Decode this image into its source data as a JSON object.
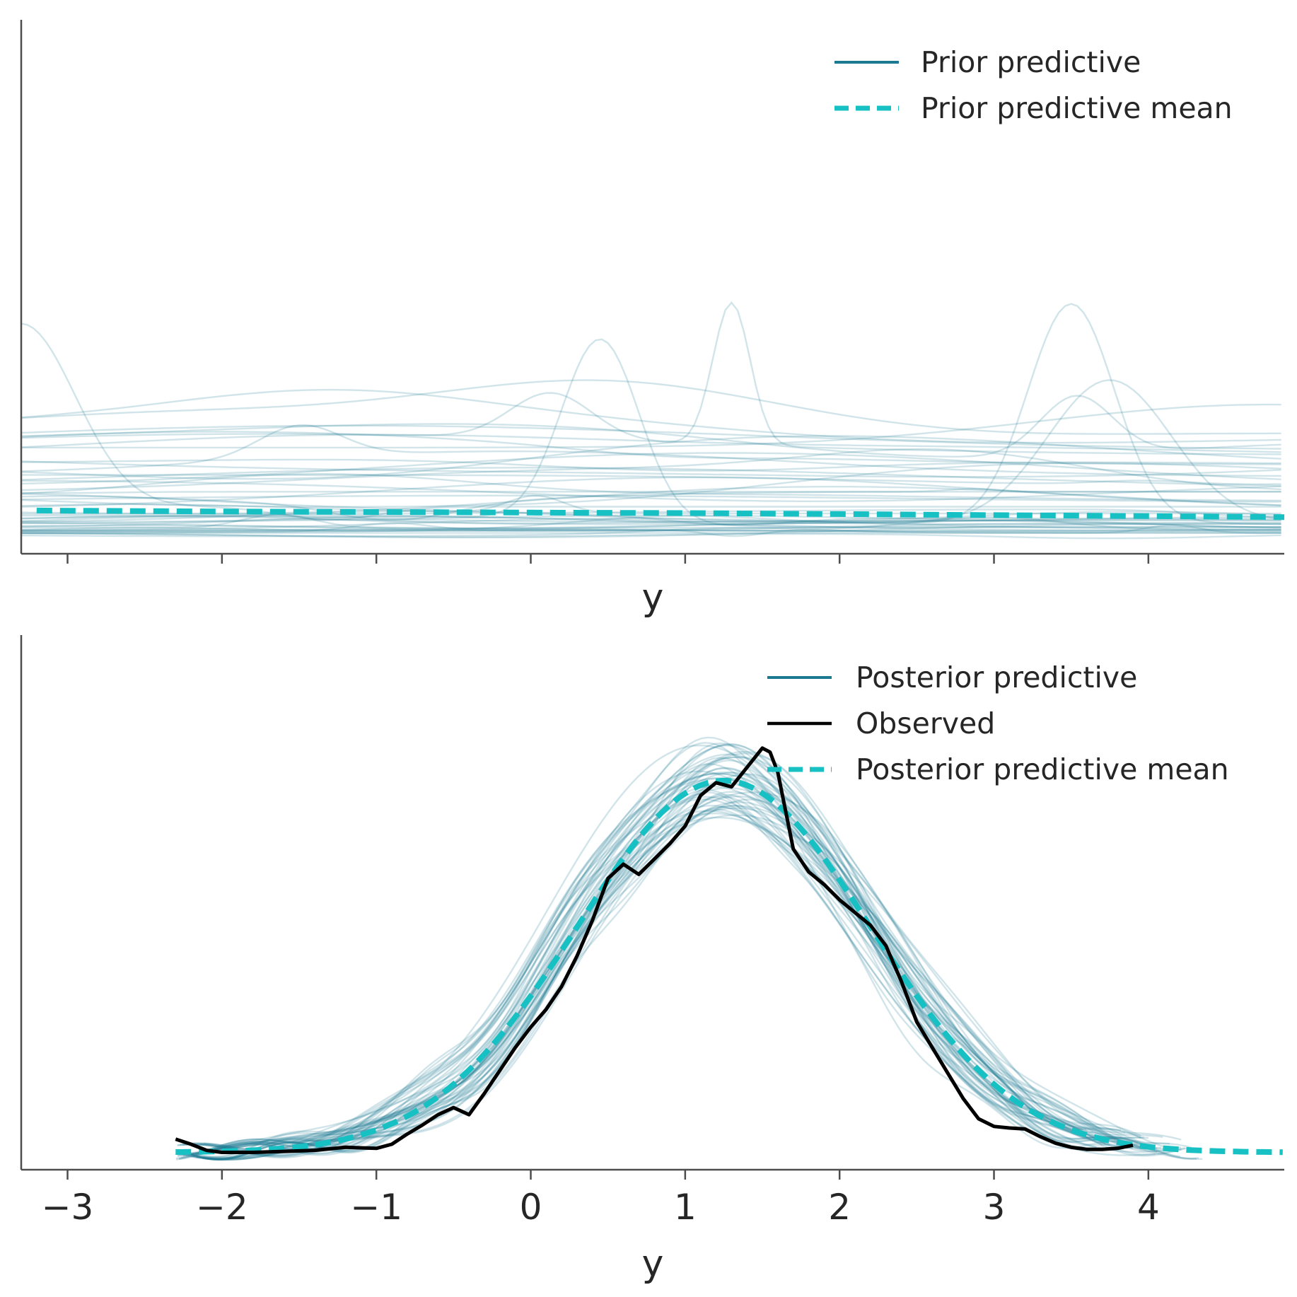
{
  "colors": {
    "sample": "#1b7a91",
    "mean": "#17c1c3",
    "observed": "#000000",
    "axis": "#4d4d4d",
    "text": "#262626"
  },
  "chart_data": [
    {
      "type": "line",
      "title": "",
      "xlabel": "y",
      "ylabel": "",
      "xlim": [
        -3.3,
        4.88
      ],
      "ylim": [
        0,
        1.05
      ],
      "x_ticks": [
        -3,
        -2,
        -1,
        0,
        1,
        2,
        3,
        4
      ],
      "x_tick_labels_visible": false,
      "legend": {
        "position": "top-right",
        "entries": [
          {
            "label": "Prior predictive",
            "style": "solid",
            "color": "#1b7a91"
          },
          {
            "label": "Prior predictive mean",
            "style": "dashed",
            "color": "#17c1c3"
          }
        ]
      },
      "series": [
        {
          "name": "Prior predictive",
          "kind": "samples",
          "count": 50,
          "opacity": 0.2
        },
        {
          "name": "Prior predictive mean",
          "kind": "mean",
          "x": [
            -3.2,
            -2,
            -1,
            0,
            1,
            2,
            3,
            4,
            4.88
          ],
          "values": [
            0.085,
            0.083,
            0.082,
            0.081,
            0.08,
            0.078,
            0.076,
            0.074,
            0.072
          ]
        }
      ]
    },
    {
      "type": "line",
      "title": "",
      "xlabel": "y",
      "ylabel": "",
      "xlim": [
        -3.3,
        4.88
      ],
      "ylim": [
        0,
        1.05
      ],
      "x_ticks": [
        -3,
        -2,
        -1,
        0,
        1,
        2,
        3,
        4
      ],
      "x_tick_labels": [
        "−3",
        "−2",
        "−1",
        "0",
        "1",
        "2",
        "3",
        "4"
      ],
      "legend": {
        "position": "top-right",
        "entries": [
          {
            "label": "Posterior predictive",
            "style": "solid",
            "color": "#1b7a91"
          },
          {
            "label": "Observed",
            "style": "solid",
            "color": "#000000"
          },
          {
            "label": "Posterior predictive mean",
            "style": "dashed",
            "color": "#17c1c3"
          }
        ]
      },
      "series": [
        {
          "name": "Posterior predictive",
          "kind": "samples",
          "count": 50,
          "opacity": 0.2
        },
        {
          "name": "Observed",
          "kind": "observed",
          "x": [
            -2.3,
            -2.2,
            -2.1,
            -2.0,
            -1.8,
            -1.6,
            -1.4,
            -1.2,
            -1.0,
            -0.9,
            -0.8,
            -0.7,
            -0.6,
            -0.5,
            -0.4,
            -0.3,
            -0.2,
            -0.1,
            0.0,
            0.1,
            0.2,
            0.3,
            0.4,
            0.5,
            0.6,
            0.7,
            0.8,
            0.9,
            1.0,
            1.1,
            1.2,
            1.3,
            1.4,
            1.5,
            1.55,
            1.6,
            1.7,
            1.8,
            1.9,
            2.0,
            2.1,
            2.2,
            2.3,
            2.4,
            2.5,
            2.6,
            2.7,
            2.8,
            2.9,
            3.0,
            3.1,
            3.2,
            3.3,
            3.4,
            3.5,
            3.6,
            3.7,
            3.8,
            3.9
          ],
          "values": [
            0.06,
            0.05,
            0.038,
            0.034,
            0.034,
            0.036,
            0.038,
            0.044,
            0.042,
            0.05,
            0.07,
            0.088,
            0.108,
            0.122,
            0.108,
            0.15,
            0.195,
            0.24,
            0.28,
            0.315,
            0.36,
            0.42,
            0.49,
            0.572,
            0.6,
            0.58,
            0.61,
            0.64,
            0.675,
            0.735,
            0.76,
            0.752,
            0.79,
            0.828,
            0.82,
            0.78,
            0.63,
            0.585,
            0.56,
            0.53,
            0.505,
            0.48,
            0.44,
            0.37,
            0.29,
            0.24,
            0.19,
            0.14,
            0.1,
            0.085,
            0.082,
            0.08,
            0.065,
            0.052,
            0.044,
            0.04,
            0.04,
            0.042,
            0.048
          ]
        },
        {
          "name": "Posterior predictive mean",
          "kind": "mean",
          "normal_fit": {
            "mean": 1.25,
            "sd": 0.95,
            "peak": 0.73,
            "baseline": 0.034
          },
          "x_range": [
            -2.3,
            4.88
          ]
        }
      ]
    }
  ]
}
